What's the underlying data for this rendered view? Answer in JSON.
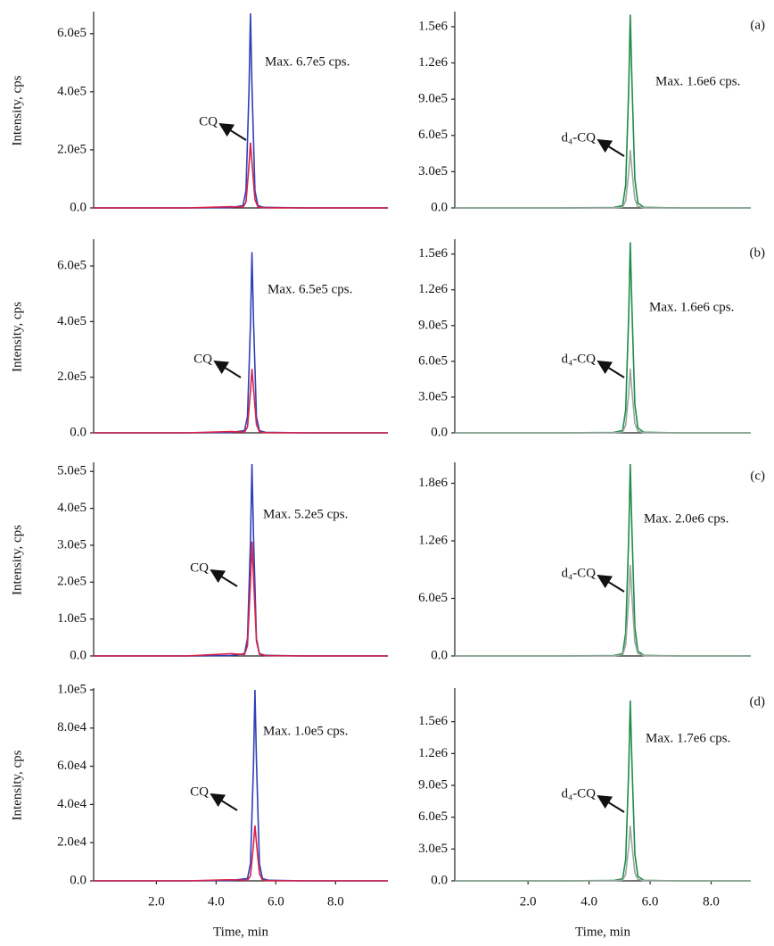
{
  "chart_data": [
    {
      "type": "line",
      "panel_label": "(a)",
      "annotation": "Max. 6.7e5 cps.",
      "peak_label": "CQ",
      "ylabel": "Intensity, cps",
      "xlim": [
        -0.1,
        9.75
      ],
      "ylim": [
        0,
        670000
      ],
      "yticks": [
        {
          "value": 0,
          "label": "0.0"
        },
        {
          "value": 200000,
          "label": "2.0e5"
        },
        {
          "value": 400000,
          "label": "4.0e5"
        },
        {
          "value": 600000,
          "label": "6.0e5"
        }
      ],
      "x": [
        -0.1,
        3.0,
        4.5,
        4.9,
        5.0,
        5.1,
        5.15,
        5.2,
        5.3,
        5.4,
        5.6,
        7.0,
        9.75
      ],
      "series": [
        {
          "color": "#2f3fb8",
          "values": [
            0,
            0,
            1300,
            8000,
            60000,
            400000,
            670000,
            420000,
            60000,
            8000,
            2000,
            0,
            0
          ]
        },
        {
          "color": "#d8234a",
          "values": [
            0,
            0,
            4500,
            2700,
            20000,
            146000,
            225000,
            158000,
            29000,
            3400,
            700,
            0,
            0
          ]
        }
      ]
    },
    {
      "type": "line",
      "panel_label": "(a)",
      "annotation": "Max. 1.6e6 cps.",
      "peak_label": "d₄-CQ",
      "xlim": [
        -0.4,
        9.3
      ],
      "ylim": [
        0,
        1610000
      ],
      "yticks": [
        {
          "value": 0,
          "label": "0.0"
        },
        {
          "value": 300000,
          "label": "3.0e5"
        },
        {
          "value": 600000,
          "label": "6.0e5"
        },
        {
          "value": 900000,
          "label": "9.0e5"
        },
        {
          "value": 1200000,
          "label": "1.2e6"
        },
        {
          "value": 1500000,
          "label": "1.5e6"
        }
      ],
      "x": [
        -0.4,
        3.0,
        4.8,
        5.1,
        5.2,
        5.3,
        5.35,
        5.4,
        5.5,
        5.6,
        5.8,
        7.0,
        9.3
      ],
      "series": [
        {
          "color": "#1f8a4a",
          "values": [
            0,
            0,
            3200,
            19000,
            190000,
            990000,
            1600000,
            1090000,
            240000,
            40000,
            4800,
            0,
            0
          ]
        },
        {
          "color": "#9aa89e",
          "values": [
            0,
            0,
            960,
            5800,
            58000,
            300000,
            480000,
            330000,
            72000,
            12000,
            1400,
            0,
            0
          ]
        }
      ]
    },
    {
      "type": "line",
      "panel_label": "(b)",
      "annotation": "Max. 6.5e5 cps.",
      "peak_label": "CQ",
      "ylabel": "Intensity, cps",
      "xlim": [
        -0.1,
        9.75
      ],
      "ylim": [
        0,
        690000
      ],
      "yticks": [
        {
          "value": 0,
          "label": "0.0"
        },
        {
          "value": 200000,
          "label": "2.0e5"
        },
        {
          "value": 400000,
          "label": "4.0e5"
        },
        {
          "value": 600000,
          "label": "6.0e5"
        }
      ],
      "x": [
        -0.1,
        3.0,
        4.5,
        4.95,
        5.05,
        5.15,
        5.2,
        5.25,
        5.35,
        5.45,
        5.65,
        7.0,
        9.75
      ],
      "series": [
        {
          "color": "#2f3fb8",
          "values": [
            0,
            0,
            1300,
            7800,
            58000,
            390000,
            650000,
            410000,
            58000,
            7800,
            2000,
            0,
            0
          ]
        },
        {
          "color": "#d8234a",
          "values": [
            0,
            0,
            4600,
            2800,
            21000,
            150000,
            230000,
            161000,
            30000,
            3500,
            700,
            0,
            0
          ]
        }
      ]
    },
    {
      "type": "line",
      "panel_label": "(b)",
      "annotation": "Max. 1.6e6 cps.",
      "peak_label": "d₄-CQ",
      "xlim": [
        -0.4,
        9.3
      ],
      "ylim": [
        0,
        1610000
      ],
      "yticks": [
        {
          "value": 0,
          "label": "0.0"
        },
        {
          "value": 300000,
          "label": "3.0e5"
        },
        {
          "value": 600000,
          "label": "6.0e5"
        },
        {
          "value": 900000,
          "label": "9.0e5"
        },
        {
          "value": 1200000,
          "label": "1.2e6"
        },
        {
          "value": 1500000,
          "label": "1.5e6"
        }
      ],
      "x": [
        -0.4,
        3.0,
        4.8,
        5.1,
        5.2,
        5.3,
        5.35,
        5.4,
        5.5,
        5.6,
        5.8,
        7.0,
        9.3
      ],
      "series": [
        {
          "color": "#1f8a4a",
          "values": [
            0,
            0,
            3200,
            19000,
            190000,
            990000,
            1600000,
            1090000,
            240000,
            40000,
            4800,
            0,
            0
          ]
        },
        {
          "color": "#9aa89e",
          "values": [
            0,
            0,
            1100,
            6500,
            65000,
            335000,
            540000,
            367000,
            81000,
            13500,
            1600,
            0,
            0
          ]
        }
      ]
    },
    {
      "type": "line",
      "panel_label": "(c)",
      "annotation": "Max. 5.2e5 cps.",
      "peak_label": "CQ",
      "ylabel": "Intensity, cps",
      "xlim": [
        -0.1,
        9.75
      ],
      "ylim": [
        0,
        520000
      ],
      "yticks": [
        {
          "value": 0,
          "label": "0.0"
        },
        {
          "value": 100000,
          "label": "1.0e5"
        },
        {
          "value": 200000,
          "label": "2.0e5"
        },
        {
          "value": 300000,
          "label": "3.0e5"
        },
        {
          "value": 400000,
          "label": "4.0e5"
        },
        {
          "value": 500000,
          "label": "5.0e5"
        }
      ],
      "x": [
        -0.1,
        3.0,
        4.5,
        4.95,
        5.05,
        5.15,
        5.2,
        5.25,
        5.35,
        5.45,
        5.65,
        7.0,
        9.75
      ],
      "series": [
        {
          "color": "#2f3fb8",
          "values": [
            0,
            0,
            1000,
            6200,
            47000,
            310000,
            520000,
            330000,
            47000,
            6200,
            1600,
            0,
            0
          ]
        },
        {
          "color": "#d8234a",
          "values": [
            0,
            0,
            6200,
            3700,
            28000,
            200000,
            310000,
            217000,
            40000,
            4700,
            900,
            0,
            0
          ]
        }
      ]
    },
    {
      "type": "line",
      "panel_label": "(c)",
      "annotation": "Max. 2.0e6 cps.",
      "peak_label": "d₄-CQ",
      "xlim": [
        -0.4,
        9.3
      ],
      "ylim": [
        0,
        2000000
      ],
      "yticks": [
        {
          "value": 0,
          "label": "0.0"
        },
        {
          "value": 600000,
          "label": "6.0e5"
        },
        {
          "value": 1200000,
          "label": "1.2e6"
        },
        {
          "value": 1800000,
          "label": "1.8e6"
        }
      ],
      "x": [
        -0.4,
        3.0,
        4.8,
        5.1,
        5.2,
        5.3,
        5.35,
        5.4,
        5.5,
        5.6,
        5.8,
        7.0,
        9.3
      ],
      "series": [
        {
          "color": "#1f8a4a",
          "values": [
            0,
            0,
            4000,
            24000,
            240000,
            1240000,
            2000000,
            1360000,
            300000,
            50000,
            6000,
            0,
            0
          ]
        },
        {
          "color": "#9aa89e",
          "values": [
            0,
            0,
            1900,
            11400,
            114000,
            590000,
            950000,
            646000,
            143000,
            24000,
            2900,
            0,
            0
          ]
        }
      ]
    },
    {
      "type": "line",
      "panel_label": "(d)",
      "annotation": "Max. 1.0e5 cps.",
      "peak_label": "CQ",
      "ylabel": "Intensity, cps",
      "xlabel": "Time, min",
      "xlim": [
        -0.1,
        9.75
      ],
      "ylim": [
        0,
        100000
      ],
      "xticks": [
        {
          "value": 2,
          "label": "2.0"
        },
        {
          "value": 4,
          "label": "4.0"
        },
        {
          "value": 6,
          "label": "6.0"
        },
        {
          "value": 8,
          "label": "8.0"
        }
      ],
      "yticks": [
        {
          "value": 0,
          "label": "0.0"
        },
        {
          "value": 20000,
          "label": "2.0e4"
        },
        {
          "value": 40000,
          "label": "4.0e4"
        },
        {
          "value": 60000,
          "label": "6.0e4"
        },
        {
          "value": 80000,
          "label": "8.0e4"
        },
        {
          "value": 100000,
          "label": "1.0e5"
        }
      ],
      "x": [
        -0.1,
        3.0,
        4.5,
        5.05,
        5.15,
        5.25,
        5.3,
        5.35,
        5.45,
        5.55,
        5.75,
        7.0,
        9.75
      ],
      "series": [
        {
          "color": "#2f3fb8",
          "values": [
            0,
            0,
            200,
            1200,
            9000,
            60000,
            100000,
            63000,
            9000,
            1200,
            300,
            0,
            0
          ]
        },
        {
          "color": "#d8234a",
          "values": [
            0,
            0,
            580,
            350,
            2600,
            19000,
            29000,
            20000,
            3800,
            440,
            90,
            0,
            0
          ]
        }
      ]
    },
    {
      "type": "line",
      "panel_label": "(d)",
      "annotation": "Max. 1.7e6 cps.",
      "peak_label": "d₄-CQ",
      "xlabel": "Time, min",
      "xlim": [
        -0.4,
        9.3
      ],
      "ylim": [
        0,
        1800000
      ],
      "xticks": [
        {
          "value": 2,
          "label": "2.0"
        },
        {
          "value": 4,
          "label": "4.0"
        },
        {
          "value": 6,
          "label": "6.0"
        },
        {
          "value": 8,
          "label": "8.0"
        }
      ],
      "yticks": [
        {
          "value": 0,
          "label": "0.0"
        },
        {
          "value": 300000,
          "label": "3.0e5"
        },
        {
          "value": 600000,
          "label": "6.0e5"
        },
        {
          "value": 900000,
          "label": "9.0e5"
        },
        {
          "value": 1200000,
          "label": "1.2e6"
        },
        {
          "value": 1500000,
          "label": "1.5e6"
        }
      ],
      "x": [
        -0.4,
        3.0,
        4.8,
        5.1,
        5.2,
        5.3,
        5.35,
        5.4,
        5.5,
        5.6,
        5.8,
        7.0,
        9.3
      ],
      "series": [
        {
          "color": "#1f8a4a",
          "values": [
            0,
            0,
            3400,
            20000,
            200000,
            1050000,
            1700000,
            1160000,
            255000,
            42000,
            5100,
            0,
            0
          ]
        },
        {
          "color": "#9aa89e",
          "values": [
            0,
            0,
            1000,
            6200,
            62000,
            322000,
            520000,
            354000,
            78000,
            13000,
            1600,
            0,
            0
          ]
        }
      ]
    }
  ]
}
